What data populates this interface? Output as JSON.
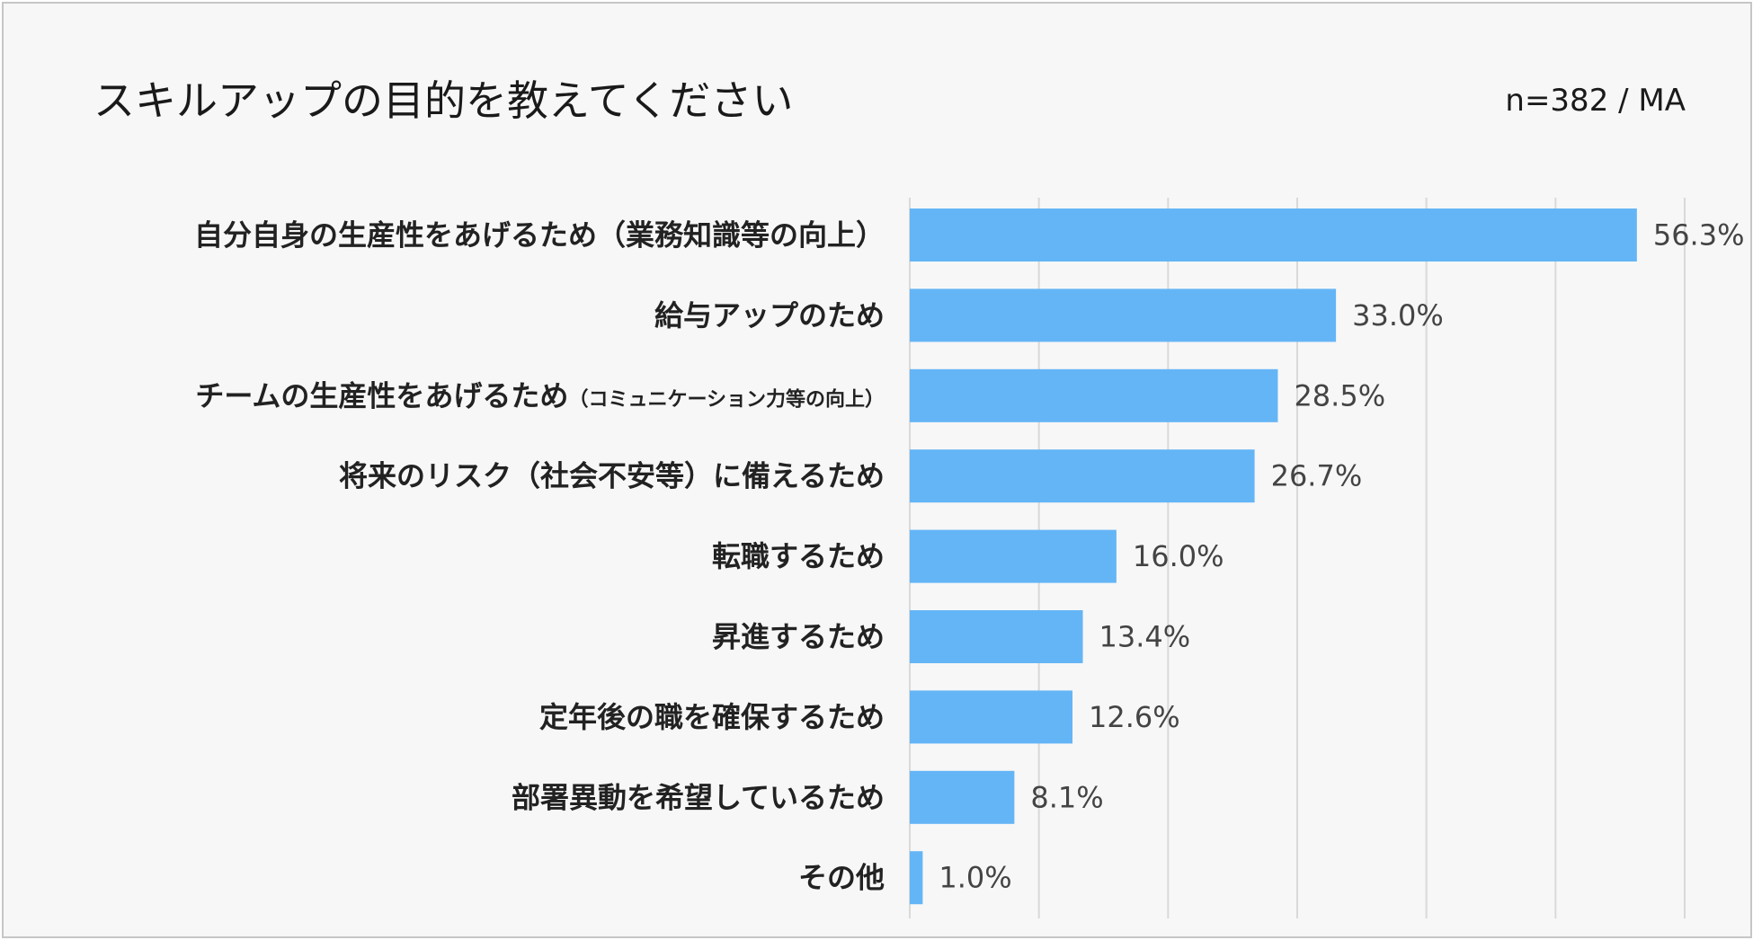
{
  "title": "スキルアップの目的を教えてください",
  "note": "n=382 / MA",
  "chart_data": {
    "type": "bar",
    "orientation": "horizontal",
    "categories": [
      {
        "main": "自分自身の生産性をあげるため（業務知識等の向上）",
        "sub": ""
      },
      {
        "main": "給与アップのため",
        "sub": ""
      },
      {
        "main": "チームの生産性をあげるため",
        "sub": "（コミュニケーション力等の向上）"
      },
      {
        "main": "将来のリスク（社会不安等）に備えるため",
        "sub": ""
      },
      {
        "main": "転職するため",
        "sub": ""
      },
      {
        "main": "昇進するため",
        "sub": ""
      },
      {
        "main": "定年後の職を確保するため",
        "sub": ""
      },
      {
        "main": "部署異動を希望しているため",
        "sub": ""
      },
      {
        "main": "その他",
        "sub": ""
      }
    ],
    "values": [
      56.3,
      33.0,
      28.5,
      26.7,
      16.0,
      13.4,
      12.6,
      8.1,
      1.0
    ],
    "value_labels": [
      "56.3%",
      "33.0%",
      "28.5%",
      "26.7%",
      "16.0%",
      "13.4%",
      "12.6%",
      "8.1%",
      "1.0%"
    ],
    "xlim": [
      0,
      60
    ],
    "grid_step": 10,
    "grid": true,
    "bar_color": "#64b5f6",
    "grid_color": "#d9d9d9"
  }
}
